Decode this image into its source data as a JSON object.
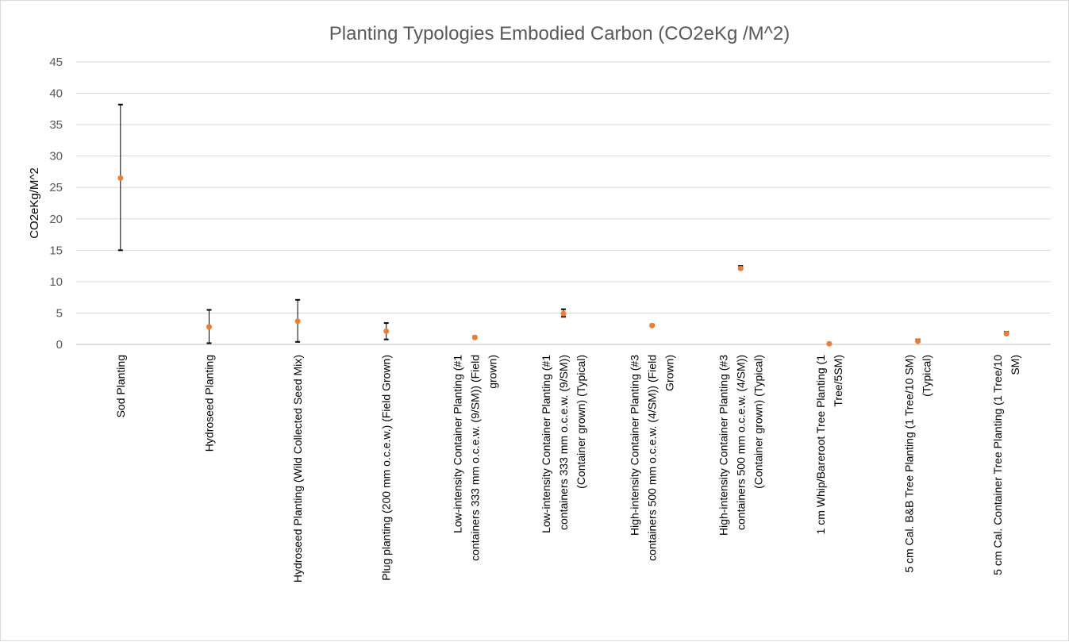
{
  "chart_data": {
    "type": "scatter",
    "title": "Planting Typologies Embodied Carbon (CO2eKg /M^2)",
    "xlabel": "",
    "ylabel": "CO2eKg/M^2",
    "ylim": [
      0,
      45
    ],
    "yticks": [
      0,
      5,
      10,
      15,
      20,
      25,
      30,
      35,
      40,
      45
    ],
    "grid": true,
    "legend": "none",
    "colors": {
      "marker": "#ED7D31",
      "error_bar": "#000000",
      "grid": "#d9d9d9",
      "axis": "#bfbfbf"
    },
    "categories": [
      [
        "Sod Planting"
      ],
      [
        "Hydroseed Planting"
      ],
      [
        "Hydroseed Planting (Wild Collected Seed Mix)"
      ],
      [
        "Plug planting (200 mm o.c.e.w.) (Field Grown)"
      ],
      [
        "Low-intensity Container Planting (#1",
        "containers 333 mm o.c.e.w. (9/SM)) (Field",
        "grown)"
      ],
      [
        "Low-intensity Container Planting (#1",
        "containers 333 mm o.c.e.w. (9/SM))",
        "(Container grown) (Typical)"
      ],
      [
        "High-intensity Container Planting (#3",
        "containers 500 mm o.c.e.w. (4/SM)) (Field",
        "Grown)"
      ],
      [
        "High-intensity Container Planting (#3",
        "containers 500 mm o.c.e.w. (4/SM))",
        "(Container grown) (Typical)"
      ],
      [
        "1 cm Whip/Bareroot Tree Planting (1",
        "Tree/5SM)"
      ],
      [
        "5 cm Cal. B&B Tree Planting (1 Tree/10 SM)",
        "(Typical)"
      ],
      [
        "5 cm Cal. Container Tree Planting (1 Tree/10",
        "SM)"
      ]
    ],
    "series": [
      {
        "values": [
          26.5,
          2.8,
          3.7,
          2.1,
          1.1,
          4.9,
          3.0,
          12.1,
          0.1,
          0.5,
          1.7
        ],
        "low": [
          15.0,
          0.2,
          0.4,
          0.8,
          1.0,
          4.4,
          2.9,
          12.0,
          0.05,
          0.4,
          1.6
        ],
        "high": [
          38.2,
          5.5,
          7.1,
          3.4,
          1.3,
          5.6,
          3.2,
          12.5,
          0.2,
          0.8,
          2.0
        ]
      }
    ]
  }
}
